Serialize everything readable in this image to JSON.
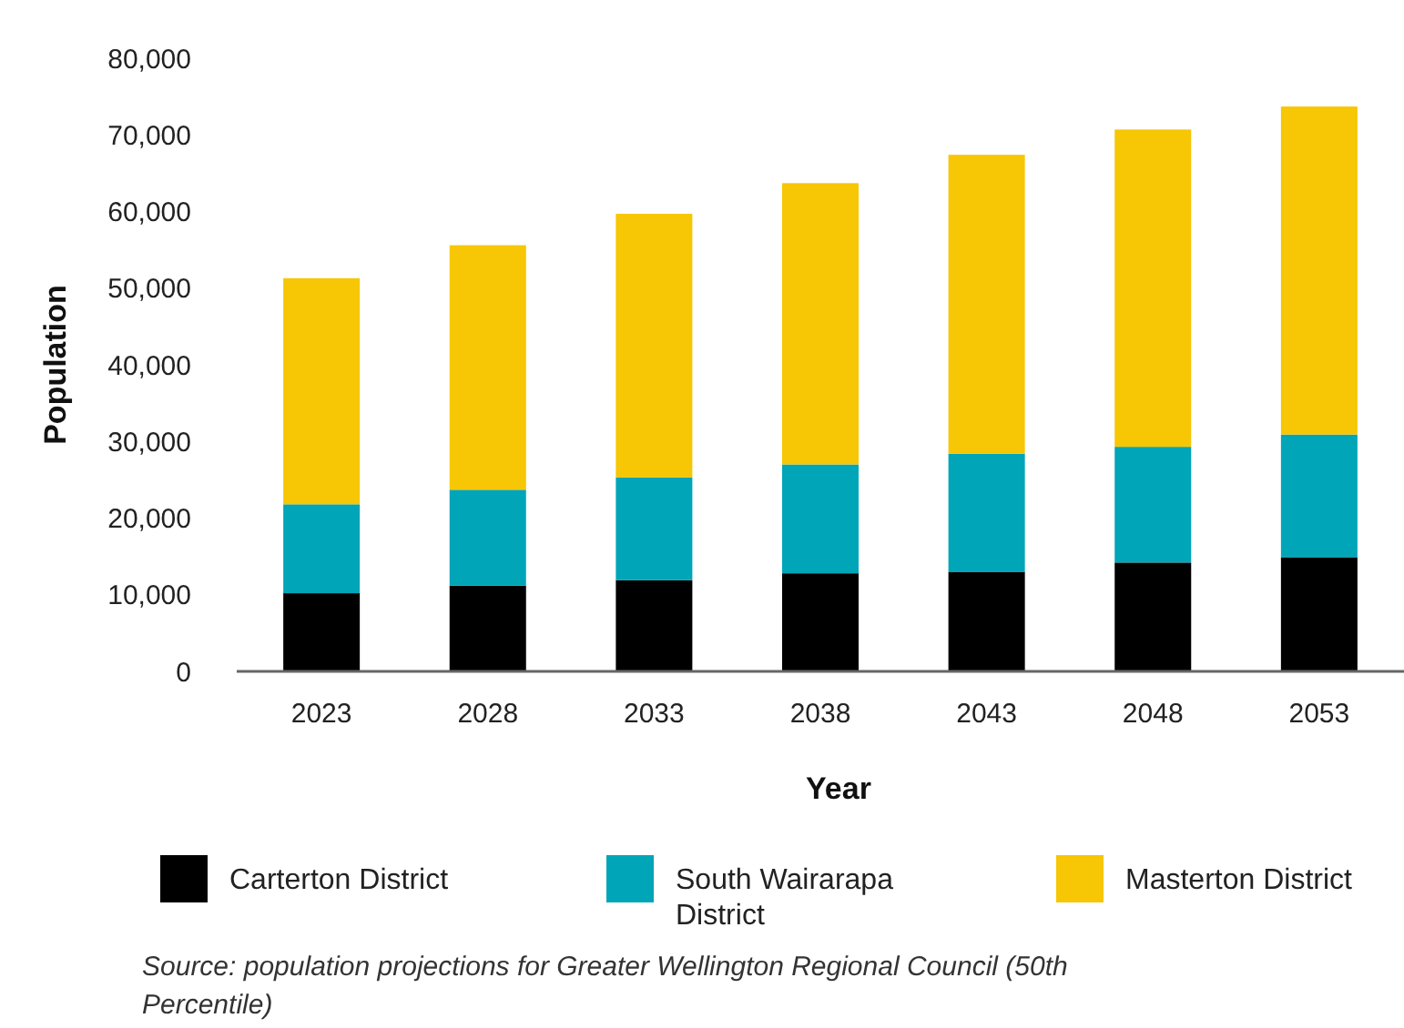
{
  "chart_data": {
    "type": "bar",
    "stacked": true,
    "xlabel": "Year",
    "ylabel": "Population",
    "categories": [
      "2023",
      "2028",
      "2033",
      "2038",
      "2043",
      "2048",
      "2053"
    ],
    "series": [
      {
        "name": "Carterton District",
        "color": "#000000",
        "values": [
          10200,
          11200,
          11900,
          12800,
          13000,
          14200,
          14900
        ]
      },
      {
        "name": "South Wairarapa District",
        "color": "#00a5b8",
        "values": [
          11600,
          12500,
          13400,
          14200,
          15400,
          15100,
          16000
        ]
      },
      {
        "name": "Masterton District",
        "color": "#f7c604",
        "values": [
          29500,
          31900,
          34400,
          36700,
          39000,
          41400,
          42800
        ]
      }
    ],
    "ylim": [
      0,
      80000
    ],
    "yticks": [
      {
        "value": 0,
        "label": "0"
      },
      {
        "value": 10000,
        "label": "10,000"
      },
      {
        "value": 20000,
        "label": "20,000"
      },
      {
        "value": 30000,
        "label": "30,000"
      },
      {
        "value": 40000,
        "label": "40,000"
      },
      {
        "value": 50000,
        "label": "50,000"
      },
      {
        "value": 60000,
        "label": "60,000"
      },
      {
        "value": 70000,
        "label": "70,000"
      },
      {
        "value": 80000,
        "label": "80,000"
      }
    ],
    "grid": false,
    "legend": "bottom",
    "annotations": [
      "Source: population projections for Greater Wellington Regional Council (50th Percentile)"
    ]
  }
}
